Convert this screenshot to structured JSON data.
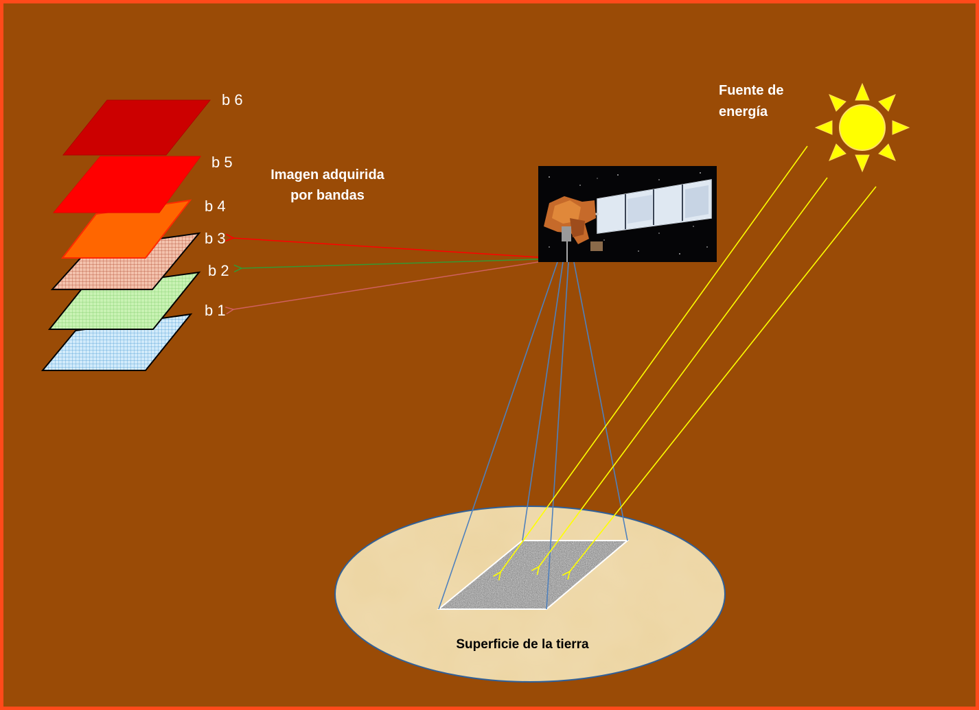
{
  "colors": {
    "background": "#9a4b06",
    "border": "#ff4a1a",
    "sun": "#ffff00",
    "sun_rays": "#ffff00",
    "footprint_lines": "#4f81bd",
    "ground": "#e9cf99",
    "band_6": "#cc0000",
    "band_5": "#ff0000",
    "band_4": "#ff6600",
    "band_3": "#f2b8a0",
    "band_2": "#c6f0b0",
    "band_1": "#c7e4f5",
    "arrow_b3": "#ff0000",
    "arrow_b2": "#339933",
    "arrow_b1": "#d06060"
  },
  "bands": {
    "b6": "b 6",
    "b5": "b 5",
    "b4": "b 4",
    "b3": "b 3",
    "b2": "b 2",
    "b1": "b 1"
  },
  "image_label": {
    "line1": "Imagen adquirida",
    "line2": "por bandas"
  },
  "energy_label": {
    "line1": "Fuente de",
    "line2": "energía"
  },
  "surface_label": "Superficie de la tierra",
  "icons": {
    "sun": "sun-icon",
    "satellite": "satellite-icon"
  }
}
